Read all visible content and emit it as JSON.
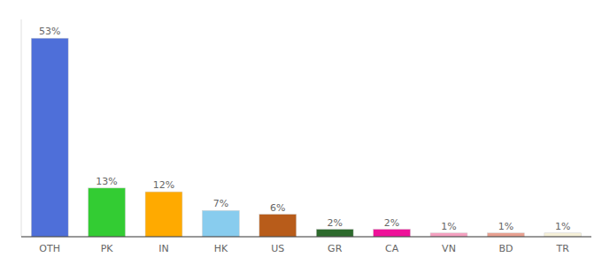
{
  "chart_data": {
    "type": "bar",
    "categories": [
      "OTH",
      "PK",
      "IN",
      "HK",
      "US",
      "GR",
      "CA",
      "VN",
      "BD",
      "TR"
    ],
    "values": [
      53,
      13,
      12,
      7,
      6,
      2,
      2,
      1,
      1,
      1
    ],
    "value_labels": [
      "53%",
      "13%",
      "12%",
      "7%",
      "6%",
      "2%",
      "2%",
      "1%",
      "1%",
      "1%"
    ],
    "colors": [
      "#4e6fd9",
      "#33cc33",
      "#ffaa00",
      "#88ccee",
      "#b85c1a",
      "#2d6a2d",
      "#ee1199",
      "#f4a0c0",
      "#e8a090",
      "#f5f0d8"
    ],
    "ylim": [
      0,
      58
    ],
    "data_labels": true,
    "tick_labels": "x"
  }
}
